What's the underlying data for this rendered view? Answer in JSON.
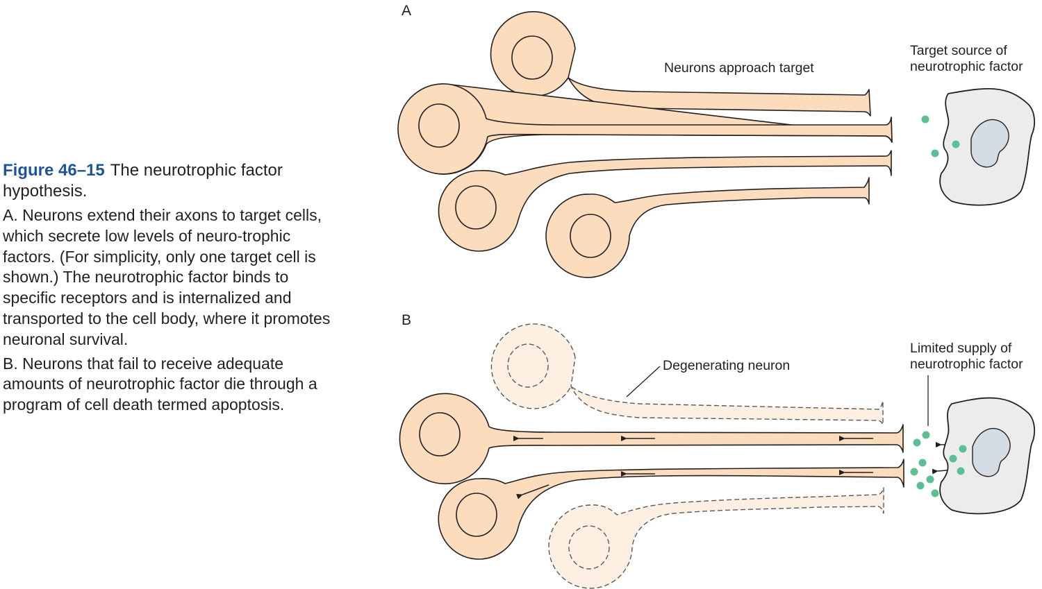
{
  "caption": {
    "figure_label": "Figure 46–15",
    "title": "The neurotrophic factor hypothesis.",
    "paragraphs": [
      "A. Neurons extend their axons to target cells, which secrete low levels of neuro-trophic factors. (For simplicity, only one target cell is shown.) The neurotrophic factor binds to specific receptors and is internalized and transported to the cell body, where it promotes neuronal survival.",
      "B. Neurons that fail to receive adequate amounts of neurotrophic factor die through a program of cell death termed apoptosis."
    ]
  },
  "panel_a": {
    "letter": "A",
    "label_neurons": "Neurons approach target",
    "label_target_line1": "Target source of",
    "label_target_line2": "neurotrophic factor"
  },
  "panel_b": {
    "letter": "B",
    "label_degenerating": "Degenerating neuron",
    "label_supply_line1": "Limited supply of",
    "label_supply_line2": "neurotrophic factor"
  },
  "colors": {
    "neuron_fill": "#fbdcbd",
    "degenerating_fill": "#fdf0e3",
    "outline": "#231f20",
    "target_cell_fill": "#ececec",
    "nucleus_fill": "#d4dde4",
    "factor_dot": "#5dbf94",
    "caption_accent": "#1f5496"
  }
}
